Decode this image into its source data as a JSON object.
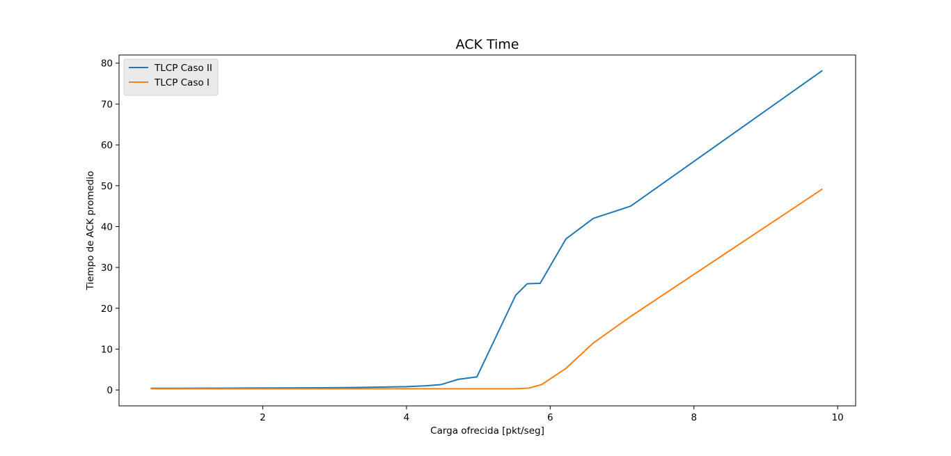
{
  "chart_data": {
    "type": "line",
    "title": "ACK Time",
    "xlabel": "Carga ofrecida [pkt/seg]",
    "ylabel": "Tiempo de ACK promedio",
    "xlim": [
      0.0,
      10.25
    ],
    "ylim": [
      -3.9,
      82.0
    ],
    "xticks": [
      2,
      4,
      6,
      8,
      10
    ],
    "yticks": [
      0,
      10,
      20,
      30,
      40,
      50,
      60,
      70,
      80
    ],
    "grid": false,
    "legend_position": "top-left",
    "series": [
      {
        "name": "TLCP Caso II",
        "color": "#1f77b4",
        "x": [
          0.45,
          1.0,
          1.5,
          2.0,
          2.5,
          3.0,
          3.5,
          4.0,
          4.25,
          4.48,
          4.72,
          4.98,
          5.52,
          5.68,
          5.86,
          6.22,
          6.6,
          7.12,
          9.78
        ],
        "y": [
          0.4,
          0.42,
          0.45,
          0.48,
          0.5,
          0.55,
          0.65,
          0.8,
          1.0,
          1.3,
          2.6,
          3.2,
          23.2,
          26.0,
          26.1,
          37.0,
          42.0,
          45.0,
          78.1
        ]
      },
      {
        "name": "TLCP Caso I",
        "color": "#ff7f0e",
        "x": [
          0.45,
          1.0,
          2.0,
          3.0,
          4.0,
          5.0,
          5.5,
          5.7,
          5.88,
          6.22,
          6.6,
          7.12,
          9.78
        ],
        "y": [
          0.3,
          0.3,
          0.3,
          0.3,
          0.3,
          0.3,
          0.3,
          0.45,
          1.3,
          5.3,
          11.5,
          18.0,
          49.1
        ]
      }
    ]
  }
}
